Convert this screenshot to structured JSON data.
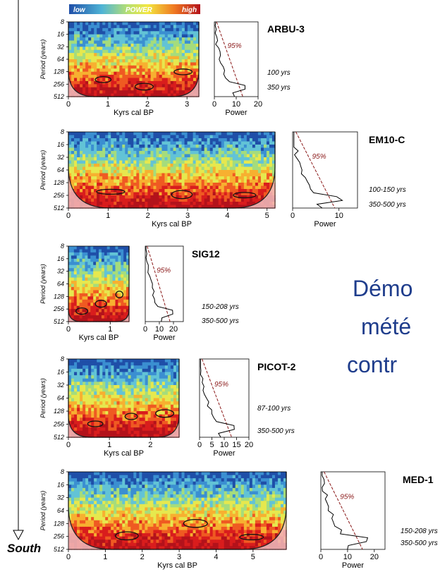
{
  "colorbar": {
    "low": "low",
    "mid": "POWER",
    "high": "high"
  },
  "south_label": "South",
  "overlay_text": {
    "line1": "Démo",
    "line2": "mété",
    "line3": "contr",
    "color": "#1f3d8c"
  },
  "palette": [
    "#1f4fa8",
    "#3b8fd1",
    "#62c3d6",
    "#a5dc7c",
    "#e6e84e",
    "#f7b030",
    "#ef5a22",
    "#d91d1d",
    "#b3121b"
  ],
  "chart_data": [
    {
      "type": "heatmap",
      "name": "ARBU-3",
      "xlabel": "Kyrs cal BP",
      "ylabel": "Period (years)",
      "x_ticks": [
        "0",
        "1",
        "2",
        "3"
      ],
      "xlim": [
        0,
        3.3
      ],
      "y_ticks": [
        "8",
        "16",
        "32",
        "64",
        "128",
        "256",
        "512"
      ],
      "power_label": "Power",
      "power_ticks": [
        "0",
        "10",
        "20"
      ],
      "power_xlim": [
        0,
        20
      ],
      "significance": "95%",
      "cycles": [
        "100 yrs",
        "350 yrs"
      ]
    },
    {
      "type": "heatmap",
      "name": "EM10-C",
      "xlabel": "Kyrs cal BP",
      "ylabel": "Period (years)",
      "x_ticks": [
        "0",
        "1",
        "2",
        "3",
        "4",
        "5"
      ],
      "xlim": [
        0,
        5.2
      ],
      "y_ticks": [
        "8",
        "16",
        "32",
        "64",
        "128",
        "256",
        "512"
      ],
      "power_label": "Power",
      "power_ticks": [
        "0",
        "10"
      ],
      "power_xlim": [
        0,
        14
      ],
      "significance": "95%",
      "cycles": [
        "100-150 yrs",
        "350-500 yrs"
      ]
    },
    {
      "type": "heatmap",
      "name": "SIG12",
      "xlabel": "Kyrs cal BP",
      "ylabel": "Period (years)",
      "x_ticks": [
        "0",
        "1"
      ],
      "xlim": [
        0,
        1.45
      ],
      "y_ticks": [
        "8",
        "16",
        "32",
        "64",
        "128",
        "256",
        "512"
      ],
      "power_label": "Power",
      "power_ticks": [
        "0",
        "10",
        "20"
      ],
      "power_xlim": [
        0,
        27
      ],
      "significance": "95%",
      "cycles": [
        "150-208 yrs",
        "350-500 yrs"
      ]
    },
    {
      "type": "heatmap",
      "name": "PICOT-2",
      "xlabel": "Kyrs cal BP",
      "ylabel": "Period (years)",
      "x_ticks": [
        "0",
        "1",
        "2"
      ],
      "xlim": [
        0,
        2.7
      ],
      "y_ticks": [
        "8",
        "16",
        "32",
        "64",
        "128",
        "256",
        "512"
      ],
      "power_label": "Power",
      "power_ticks": [
        "0",
        "5",
        "10",
        "15",
        "20"
      ],
      "power_xlim": [
        0,
        20
      ],
      "significance": "95%",
      "cycles": [
        "87-100 yrs",
        "350-500 yrs"
      ]
    },
    {
      "type": "heatmap",
      "name": "MED-1",
      "xlabel": "Kyrs cal BP",
      "ylabel": "Period (years)",
      "x_ticks": [
        "0",
        "1",
        "2",
        "3",
        "4",
        "5"
      ],
      "xlim": [
        0,
        5.9
      ],
      "y_ticks": [
        "8",
        "16",
        "32",
        "64",
        "128",
        "256",
        "512"
      ],
      "power_label": "Power",
      "power_ticks": [
        "0",
        "10",
        "20"
      ],
      "power_xlim": [
        0,
        24
      ],
      "significance": "95%",
      "cycles": [
        "150-208 yrs",
        "350-500 yrs"
      ]
    }
  ]
}
